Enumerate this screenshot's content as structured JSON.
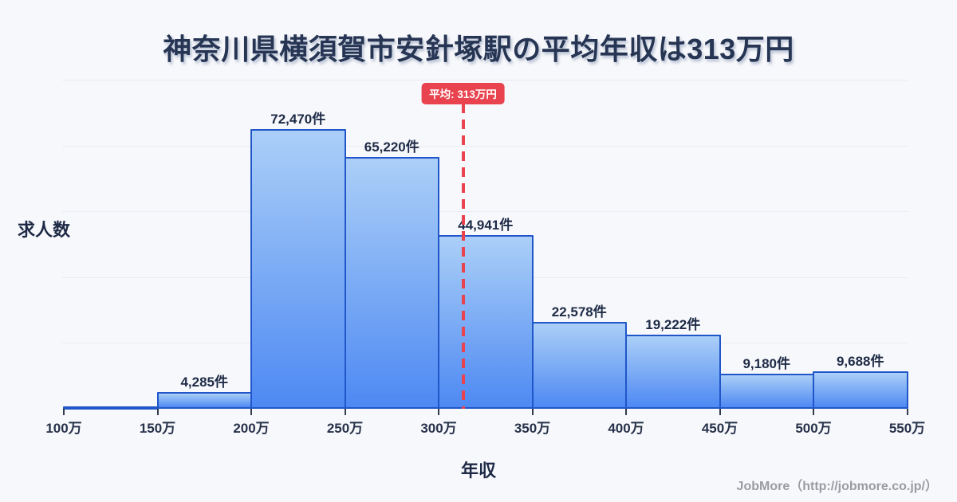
{
  "title": "神奈川県横須賀市安針塚駅の平均年収は313万円",
  "axes": {
    "y_label": "求人数",
    "x_label": "年収"
  },
  "average": {
    "badge_label": "平均: 313万円",
    "value_man_yen": 313
  },
  "footer": {
    "credit": "JobMore（http://jobmore.co.jp/）"
  },
  "colors": {
    "background": "#f7f8fb",
    "title_text": "#263553",
    "bar_fill_top": "#abcff7",
    "bar_fill_bottom": "#4e89f3",
    "bar_border": "#2056c9",
    "accent_red": "#e8434e",
    "gridline": "#e9ecf2",
    "label_text": "#1e2b47",
    "footer_text": "#9b9ba2"
  },
  "chart_data": {
    "type": "bar",
    "title": "神奈川県横須賀市安針塚駅の平均年収は313万円",
    "xlabel": "年収",
    "ylabel": "求人数",
    "x_tick_labels": [
      "100万",
      "150万",
      "200万",
      "250万",
      "300万",
      "350万",
      "400万",
      "450万",
      "500万",
      "550万"
    ],
    "bin_edges_man_yen": [
      100,
      150,
      200,
      250,
      300,
      350,
      400,
      450,
      500,
      550
    ],
    "values": [
      500,
      4285,
      72470,
      65220,
      44941,
      22578,
      19222,
      9180,
      9688
    ],
    "bar_labels": [
      "",
      "4,285件",
      "72,470件",
      "65,220件",
      "44,941件",
      "22,578件",
      "19,222件",
      "9,180件",
      "9,688件"
    ],
    "first_bin_value_estimated": true,
    "average_man_yen": 313,
    "ylim": [
      0,
      85000
    ],
    "grid": true,
    "legend": "none"
  }
}
